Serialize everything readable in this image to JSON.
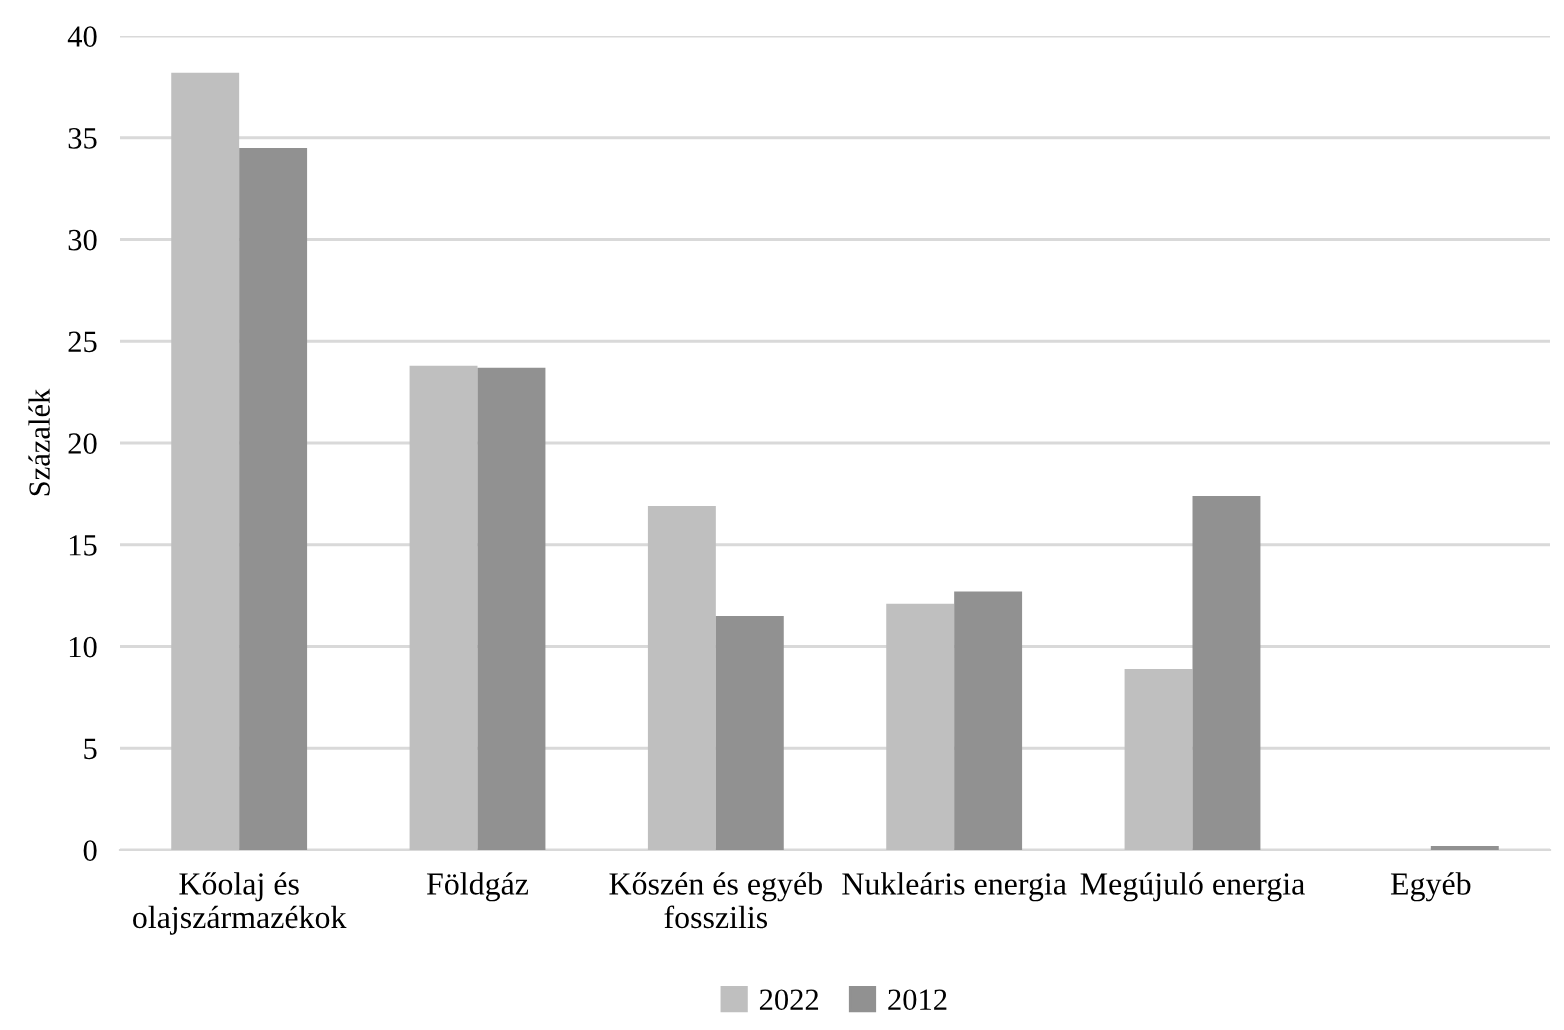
{
  "chart_data": {
    "type": "bar",
    "ylabel": "Százalék",
    "categories": [
      "Kőolaj és\nolajszármazékok",
      "Földgáz",
      "Kőszén és egyéb\nfosszilis",
      "Nukleáris energia",
      "Megújuló energia",
      "Egyéb"
    ],
    "series": [
      {
        "name": "2022",
        "color": "#bfbfbf",
        "values": [
          38.2,
          23.8,
          16.9,
          12.1,
          8.9,
          0
        ]
      },
      {
        "name": "2012",
        "color": "#919191",
        "values": [
          34.5,
          23.7,
          11.5,
          12.7,
          17.4,
          0.2
        ]
      }
    ],
    "ylim": [
      0,
      40
    ],
    "yticks": [
      0,
      5,
      10,
      15,
      20,
      25,
      30,
      35,
      40
    ],
    "grid": "y",
    "legend": "bottom"
  }
}
